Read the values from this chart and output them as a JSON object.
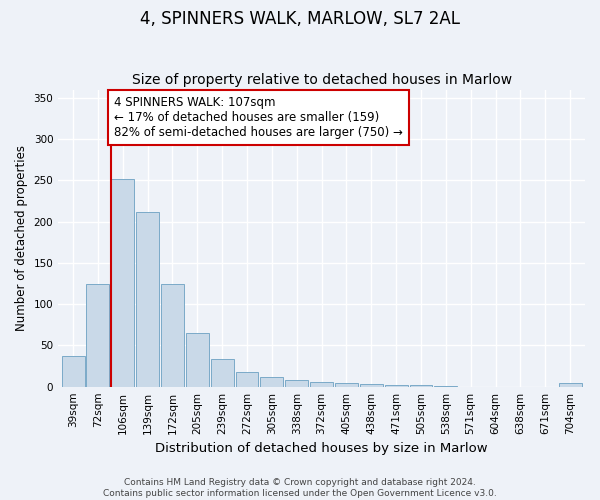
{
  "title": "4, SPINNERS WALK, MARLOW, SL7 2AL",
  "subtitle": "Size of property relative to detached houses in Marlow",
  "xlabel": "Distribution of detached houses by size in Marlow",
  "ylabel": "Number of detached properties",
  "bin_labels": [
    "39sqm",
    "72sqm",
    "106sqm",
    "139sqm",
    "172sqm",
    "205sqm",
    "239sqm",
    "272sqm",
    "305sqm",
    "338sqm",
    "372sqm",
    "405sqm",
    "438sqm",
    "471sqm",
    "505sqm",
    "538sqm",
    "571sqm",
    "604sqm",
    "638sqm",
    "671sqm",
    "704sqm"
  ],
  "bar_heights": [
    37,
    125,
    252,
    212,
    125,
    65,
    33,
    18,
    12,
    8,
    6,
    4,
    3,
    2,
    2,
    1,
    0,
    0,
    0,
    0,
    5
  ],
  "bar_color": "#c9d9e8",
  "bar_edge_color": "#7aaac8",
  "marker_bin_index": 2,
  "vline_color": "#cc0000",
  "annotation_line1": "4 SPINNERS WALK: 107sqm",
  "annotation_line2": "← 17% of detached houses are smaller (159)",
  "annotation_line3": "82% of semi-detached houses are larger (750) →",
  "annotation_box_color": "#ffffff",
  "annotation_box_edge_color": "#cc0000",
  "ylim": [
    0,
    360
  ],
  "yticks": [
    0,
    50,
    100,
    150,
    200,
    250,
    300,
    350
  ],
  "background_color": "#eef2f8",
  "grid_color": "#ffffff",
  "footer_text": "Contains HM Land Registry data © Crown copyright and database right 2024.\nContains public sector information licensed under the Open Government Licence v3.0.",
  "title_fontsize": 12,
  "subtitle_fontsize": 10,
  "xlabel_fontsize": 9.5,
  "ylabel_fontsize": 8.5,
  "tick_fontsize": 7.5,
  "annotation_fontsize": 8.5,
  "footer_fontsize": 6.5
}
